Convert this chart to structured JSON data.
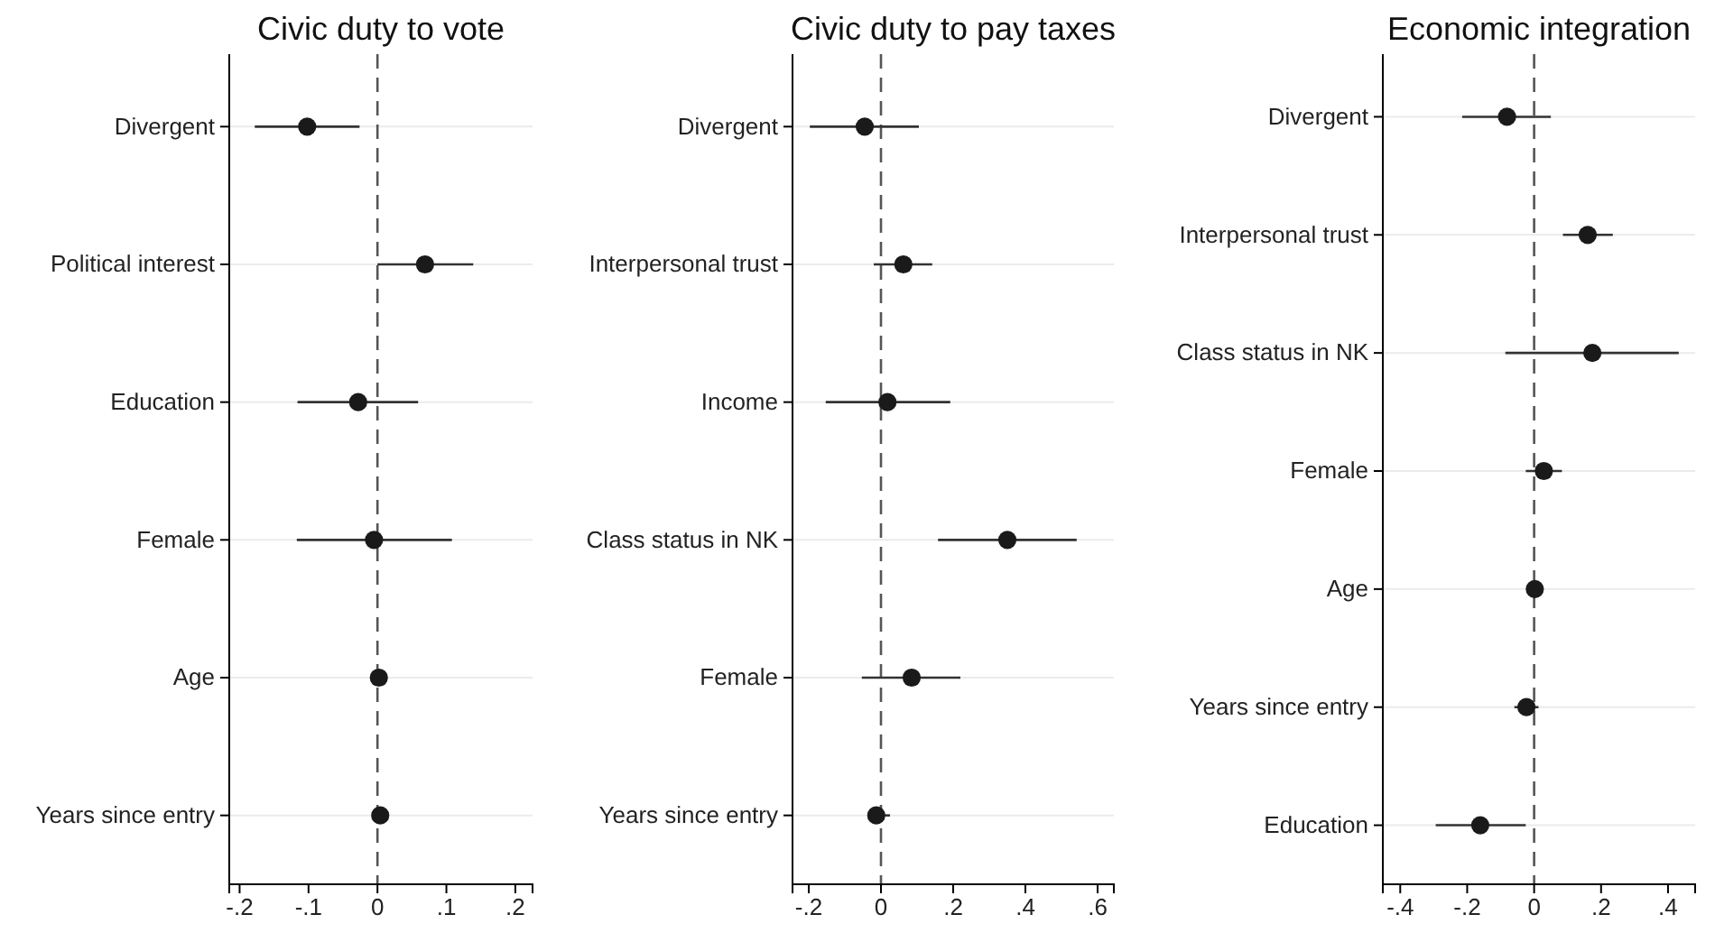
{
  "chart_data": [
    {
      "type": "scatter",
      "orientation": "horizontal",
      "title": "Civic duty to vote",
      "categories": [
        "Divergent",
        "Political interest",
        "Education",
        "Female",
        "Age",
        "Years since entry"
      ],
      "values": [
        -0.102,
        0.069,
        -0.028,
        -0.005,
        0.002,
        0.004
      ],
      "errors": [
        [
          -0.178,
          -0.026
        ],
        [
          0,
          0.139
        ],
        [
          -0.116,
          0.059
        ],
        [
          -0.117,
          0.108
        ],
        null,
        null
      ],
      "color": "#1a1a1a",
      "marker": "circle",
      "grid": "y",
      "xlim": [
        -0.215,
        0.225
      ],
      "xticks": [
        {
          "value": -0.2,
          "label": "-.2"
        },
        {
          "value": -0.1,
          "label": "-.1"
        },
        {
          "value": 0,
          "label": "0"
        },
        {
          "value": 0.1,
          "label": ".1"
        },
        {
          "value": 0.2,
          "label": ".2"
        }
      ],
      "ref_lines": [
        {
          "axis": "x",
          "value": 0,
          "color": "#555555",
          "line_style": "dashed"
        }
      ]
    },
    {
      "type": "scatter",
      "orientation": "horizontal",
      "title": "Civic duty to pay taxes",
      "categories": [
        "Divergent",
        "Interpersonal trust",
        "Income",
        "Class status in NK",
        "Female",
        "Years since entry"
      ],
      "values": [
        -0.045,
        0.062,
        0.018,
        0.35,
        0.085,
        -0.013
      ],
      "errors": [
        [
          -0.197,
          0.105
        ],
        [
          -0.02,
          0.142
        ],
        [
          -0.153,
          0.192
        ],
        [
          0.158,
          0.542
        ],
        [
          -0.053,
          0.22
        ],
        [
          -0.03,
          0.025
        ]
      ],
      "color": "#1a1a1a",
      "marker": "circle",
      "grid": "y",
      "xlim": [
        -0.245,
        0.645
      ],
      "xticks": [
        {
          "value": -0.2,
          "label": "-.2"
        },
        {
          "value": 0,
          "label": "0"
        },
        {
          "value": 0.2,
          "label": ".2"
        },
        {
          "value": 0.4,
          "label": ".4"
        },
        {
          "value": 0.6,
          "label": ".6"
        }
      ],
      "ref_lines": [
        {
          "axis": "x",
          "value": 0,
          "color": "#555555",
          "line_style": "dashed"
        }
      ]
    },
    {
      "type": "scatter",
      "orientation": "horizontal",
      "title": "Economic integration",
      "categories": [
        "Divergent",
        "Interpersonal trust",
        "Class status in NK",
        "Female",
        "Age",
        "Years since entry",
        "Education"
      ],
      "values": [
        -0.081,
        0.16,
        0.174,
        0.029,
        0.002,
        -0.023,
        -0.161
      ],
      "errors": [
        [
          -0.215,
          0.05
        ],
        [
          0.086,
          0.235
        ],
        [
          -0.086,
          0.432
        ],
        [
          -0.025,
          0.083
        ],
        null,
        [
          -0.059,
          0.013
        ],
        [
          -0.294,
          -0.025
        ]
      ],
      "color": "#1a1a1a",
      "marker": "circle",
      "grid": "y",
      "xlim": [
        -0.452,
        0.481
      ],
      "xticks": [
        {
          "value": -0.4,
          "label": "-.4"
        },
        {
          "value": -0.2,
          "label": "-.2"
        },
        {
          "value": 0,
          "label": "0"
        },
        {
          "value": 0.2,
          "label": ".2"
        },
        {
          "value": 0.4,
          "label": ".4"
        }
      ],
      "ref_lines": [
        {
          "axis": "x",
          "value": 0,
          "color": "#555555",
          "line_style": "dashed"
        }
      ]
    }
  ]
}
